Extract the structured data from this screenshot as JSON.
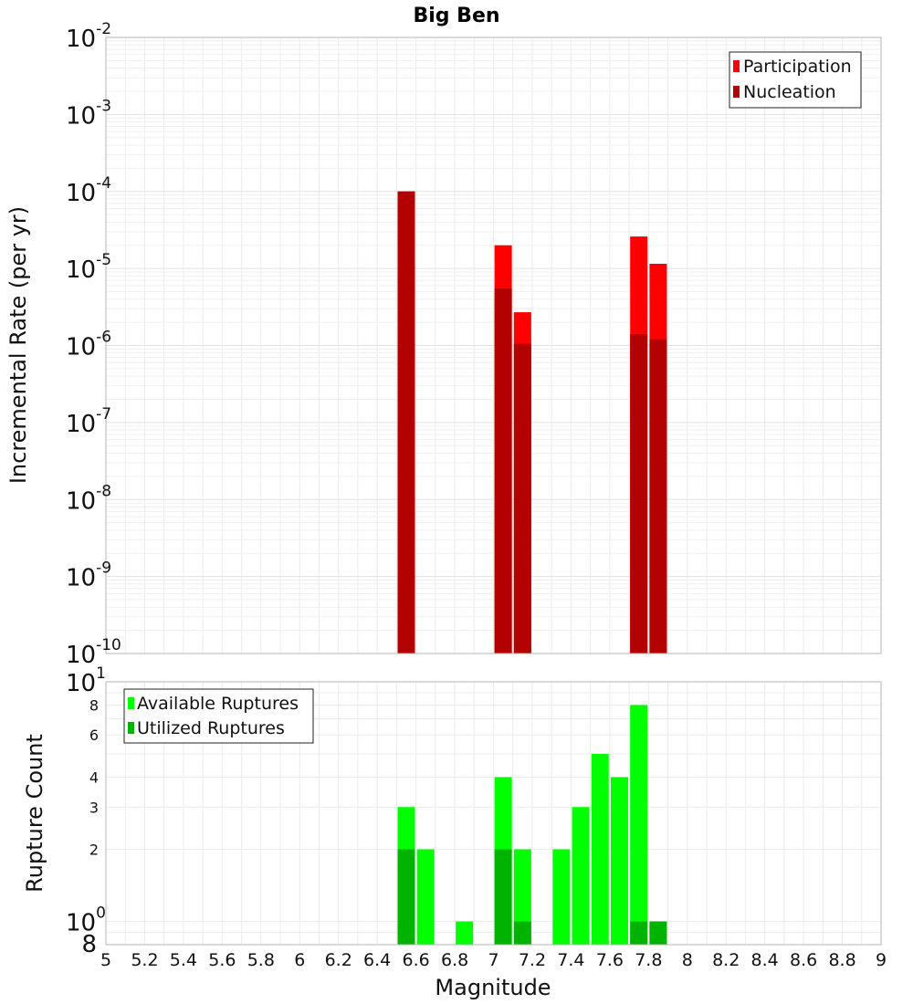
{
  "chart_data": [
    {
      "type": "bar",
      "title": "Big Ben",
      "xlabel": "",
      "ylabel": "Incremental Rate (per yr)",
      "yscale": "log",
      "ylim": [
        1e-10,
        0.01
      ],
      "xlim": [
        5,
        9
      ],
      "y_tick_labels": [
        {
          "base": "10",
          "exp": "-2"
        },
        {
          "base": "10",
          "exp": "-3"
        },
        {
          "base": "10",
          "exp": "-4"
        },
        {
          "base": "10",
          "exp": "-5"
        },
        {
          "base": "10",
          "exp": "-6"
        },
        {
          "base": "10",
          "exp": "-7"
        },
        {
          "base": "10",
          "exp": "-8"
        },
        {
          "base": "10",
          "exp": "-9"
        },
        {
          "base": "10",
          "exp": "-10"
        }
      ],
      "grid": true,
      "legend_position": "top-right",
      "series": [
        {
          "name": "Participation",
          "color": "#ff0000",
          "x": [
            6.55,
            7.05,
            7.15,
            7.75,
            7.85
          ],
          "values": [
            0.0001,
            2e-05,
            2.7e-06,
            2.6e-05,
            1.15e-05
          ]
        },
        {
          "name": "Nucleation",
          "color": "#b30000",
          "x": [
            6.55,
            7.05,
            7.15,
            7.75,
            7.85
          ],
          "values": [
            0.0001,
            5.5e-06,
            1.05e-06,
            1.4e-06,
            1.2e-06
          ]
        }
      ]
    },
    {
      "type": "bar",
      "title": "",
      "xlabel": "Magnitude",
      "ylabel": "Rupture Count",
      "yscale": "log",
      "ylim": [
        0.8,
        10
      ],
      "xlim": [
        5,
        9
      ],
      "x_ticks": [
        "5",
        "5.2",
        "5.4",
        "5.6",
        "5.8",
        "6",
        "6.2",
        "6.4",
        "6.6",
        "6.8",
        "7",
        "7.2",
        "7.4",
        "7.6",
        "7.8",
        "8",
        "8.2",
        "8.4",
        "8.6",
        "8.8",
        "9"
      ],
      "y_major_labels": [
        {
          "value": 10,
          "base": "10",
          "exp": "1"
        },
        {
          "value": 1,
          "base": "10",
          "exp": "0"
        }
      ],
      "y_minor_labels": [
        "8",
        "6",
        "4",
        "3",
        "2",
        "8"
      ],
      "grid": true,
      "legend_position": "top-left",
      "series": [
        {
          "name": "Available Ruptures",
          "color": "#00ff00",
          "x": [
            6.55,
            6.65,
            6.85,
            7.05,
            7.15,
            7.35,
            7.45,
            7.55,
            7.65,
            7.75,
            7.85
          ],
          "values": [
            3,
            2,
            1,
            4,
            2,
            2,
            3,
            5,
            4,
            8,
            1
          ]
        },
        {
          "name": "Utilized Ruptures",
          "color": "#00b300",
          "x": [
            6.55,
            7.05,
            7.15,
            7.75,
            7.85
          ],
          "values": [
            2,
            2,
            1,
            1,
            1
          ]
        }
      ]
    }
  ]
}
